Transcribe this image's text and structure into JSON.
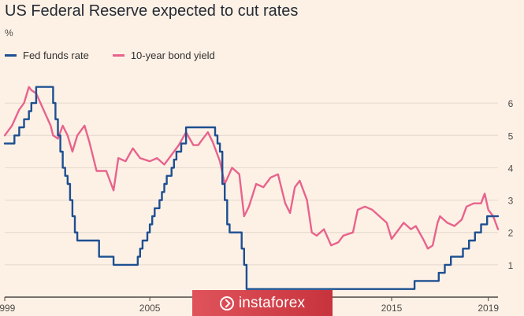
{
  "title": "US Federal Reserve expected to cut rates",
  "unit": "%",
  "colors": {
    "fed": "#1d4f91",
    "bond": "#e8638c",
    "grid": "#e3d8cc",
    "axis": "#4d4640"
  },
  "watermark": {
    "text": "instaforex",
    "icon": "instaforex-logo-icon"
  },
  "chart_data": {
    "type": "line",
    "title": "US Federal Reserve expected to cut rates",
    "ylabel": "%",
    "xlim": [
      1999.0,
      2019.4
    ],
    "ylim": [
      0,
      7
    ],
    "y_ticks": [
      1,
      2,
      3,
      4,
      5,
      6
    ],
    "x_ticks": [
      1999,
      2005,
      2010,
      2015,
      2019
    ],
    "x_tick_labels": [
      "1999",
      "2005",
      "",
      "2015",
      "2019"
    ],
    "grid": true,
    "legend_position": "top-left",
    "series": [
      {
        "name": "Fed funds rate",
        "color": "#1d4f91",
        "step": true,
        "points": [
          [
            1999.0,
            4.75
          ],
          [
            1999.4,
            5.0
          ],
          [
            1999.6,
            5.25
          ],
          [
            1999.8,
            5.5
          ],
          [
            2000.0,
            5.75
          ],
          [
            2000.1,
            6.0
          ],
          [
            2000.3,
            6.5
          ],
          [
            2001.0,
            6.0
          ],
          [
            2001.1,
            5.5
          ],
          [
            2001.2,
            5.0
          ],
          [
            2001.3,
            4.5
          ],
          [
            2001.4,
            4.0
          ],
          [
            2001.5,
            3.75
          ],
          [
            2001.6,
            3.5
          ],
          [
            2001.7,
            3.0
          ],
          [
            2001.8,
            2.5
          ],
          [
            2001.9,
            2.0
          ],
          [
            2002.0,
            1.75
          ],
          [
            2002.9,
            1.25
          ],
          [
            2003.5,
            1.0
          ],
          [
            2004.5,
            1.25
          ],
          [
            2004.6,
            1.5
          ],
          [
            2004.7,
            1.75
          ],
          [
            2004.9,
            2.0
          ],
          [
            2005.0,
            2.25
          ],
          [
            2005.1,
            2.5
          ],
          [
            2005.2,
            2.75
          ],
          [
            2005.4,
            3.0
          ],
          [
            2005.5,
            3.25
          ],
          [
            2005.6,
            3.5
          ],
          [
            2005.7,
            3.75
          ],
          [
            2005.9,
            4.0
          ],
          [
            2006.0,
            4.25
          ],
          [
            2006.1,
            4.5
          ],
          [
            2006.3,
            4.75
          ],
          [
            2006.5,
            5.25
          ],
          [
            2007.7,
            5.0
          ],
          [
            2007.8,
            4.75
          ],
          [
            2007.9,
            4.5
          ],
          [
            2008.0,
            3.5
          ],
          [
            2008.1,
            3.0
          ],
          [
            2008.2,
            2.25
          ],
          [
            2008.3,
            2.0
          ],
          [
            2008.8,
            1.5
          ],
          [
            2008.9,
            1.0
          ],
          [
            2009.0,
            0.25
          ],
          [
            2015.95,
            0.25
          ],
          [
            2015.95,
            0.5
          ],
          [
            2016.95,
            0.5
          ],
          [
            2016.95,
            0.75
          ],
          [
            2017.2,
            0.75
          ],
          [
            2017.2,
            1.0
          ],
          [
            2017.45,
            1.0
          ],
          [
            2017.45,
            1.25
          ],
          [
            2017.95,
            1.25
          ],
          [
            2017.95,
            1.5
          ],
          [
            2018.2,
            1.5
          ],
          [
            2018.2,
            1.75
          ],
          [
            2018.45,
            1.75
          ],
          [
            2018.45,
            2.0
          ],
          [
            2018.7,
            2.0
          ],
          [
            2018.7,
            2.25
          ],
          [
            2018.95,
            2.25
          ],
          [
            2018.95,
            2.5
          ],
          [
            2019.4,
            2.5
          ]
        ]
      },
      {
        "name": "10-year bond yield",
        "color": "#e8638c",
        "step": false,
        "points": [
          [
            1999.0,
            5.0
          ],
          [
            1999.3,
            5.3
          ],
          [
            1999.6,
            5.8
          ],
          [
            1999.8,
            6.0
          ],
          [
            2000.0,
            6.5
          ],
          [
            2000.1,
            6.4
          ],
          [
            2000.3,
            6.3
          ],
          [
            2000.6,
            5.8
          ],
          [
            2000.9,
            5.3
          ],
          [
            2001.0,
            5.0
          ],
          [
            2001.2,
            4.9
          ],
          [
            2001.4,
            5.3
          ],
          [
            2001.6,
            5.0
          ],
          [
            2001.8,
            4.5
          ],
          [
            2002.0,
            5.0
          ],
          [
            2002.3,
            5.3
          ],
          [
            2002.5,
            4.8
          ],
          [
            2002.8,
            3.9
          ],
          [
            2003.2,
            3.9
          ],
          [
            2003.5,
            3.3
          ],
          [
            2003.7,
            4.3
          ],
          [
            2004.0,
            4.2
          ],
          [
            2004.3,
            4.6
          ],
          [
            2004.6,
            4.3
          ],
          [
            2005.0,
            4.2
          ],
          [
            2005.3,
            4.3
          ],
          [
            2005.6,
            4.1
          ],
          [
            2005.9,
            4.4
          ],
          [
            2006.2,
            4.7
          ],
          [
            2006.5,
            5.1
          ],
          [
            2006.8,
            4.7
          ],
          [
            2007.0,
            4.7
          ],
          [
            2007.4,
            5.1
          ],
          [
            2007.6,
            4.8
          ],
          [
            2007.9,
            4.2
          ],
          [
            2008.1,
            3.5
          ],
          [
            2008.4,
            4.0
          ],
          [
            2008.7,
            3.8
          ],
          [
            2008.9,
            2.5
          ],
          [
            2009.1,
            2.8
          ],
          [
            2009.4,
            3.5
          ],
          [
            2009.7,
            3.4
          ],
          [
            2010.0,
            3.7
          ],
          [
            2010.3,
            3.8
          ],
          [
            2010.6,
            2.9
          ],
          [
            2010.8,
            2.6
          ],
          [
            2011.0,
            3.4
          ],
          [
            2011.2,
            3.6
          ],
          [
            2011.5,
            3.0
          ],
          [
            2011.7,
            2.0
          ],
          [
            2011.9,
            1.9
          ],
          [
            2012.2,
            2.1
          ],
          [
            2012.5,
            1.6
          ],
          [
            2012.8,
            1.7
          ],
          [
            2013.0,
            1.9
          ],
          [
            2013.4,
            2.0
          ],
          [
            2013.6,
            2.7
          ],
          [
            2013.9,
            2.8
          ],
          [
            2014.2,
            2.7
          ],
          [
            2014.5,
            2.5
          ],
          [
            2014.8,
            2.3
          ],
          [
            2015.0,
            1.8
          ],
          [
            2015.3,
            2.1
          ],
          [
            2015.5,
            2.3
          ],
          [
            2015.8,
            2.1
          ],
          [
            2016.0,
            2.2
          ],
          [
            2016.3,
            1.8
          ],
          [
            2016.5,
            1.5
          ],
          [
            2016.7,
            1.6
          ],
          [
            2016.9,
            2.3
          ],
          [
            2017.0,
            2.5
          ],
          [
            2017.3,
            2.3
          ],
          [
            2017.6,
            2.2
          ],
          [
            2017.9,
            2.4
          ],
          [
            2018.1,
            2.8
          ],
          [
            2018.4,
            2.9
          ],
          [
            2018.7,
            2.9
          ],
          [
            2018.85,
            3.2
          ],
          [
            2019.0,
            2.7
          ],
          [
            2019.2,
            2.5
          ],
          [
            2019.4,
            2.1
          ]
        ]
      }
    ]
  }
}
